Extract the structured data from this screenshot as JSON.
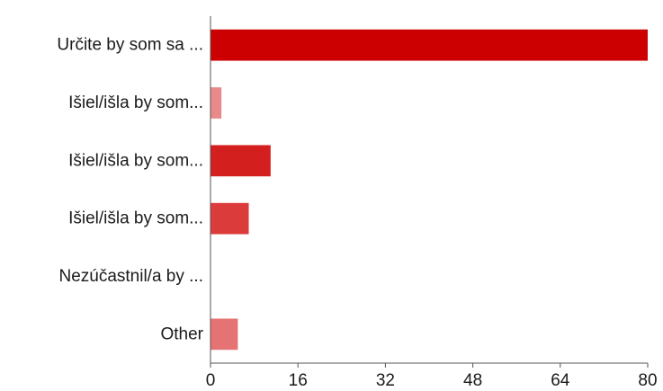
{
  "chart_data": {
    "type": "bar",
    "orientation": "horizontal",
    "categories": [
      "Určite by som sa ...",
      "Išiel/išla by som...",
      "Išiel/išla by som...",
      "Išiel/išla by som...",
      "Nezúčastnil/a by ...",
      "Other"
    ],
    "values": [
      80,
      2,
      11,
      7,
      0,
      5
    ],
    "bar_colors": [
      "#cc0000",
      "#e88a8a",
      "#d41f1f",
      "#dc3b3b",
      "#e88a8a",
      "#e57373"
    ],
    "xlim": [
      0,
      80
    ],
    "x_ticks": [
      "0",
      "16",
      "32",
      "48",
      "64",
      "80"
    ],
    "title": "",
    "xlabel": "",
    "ylabel": "",
    "grid": false,
    "legend": "none"
  }
}
